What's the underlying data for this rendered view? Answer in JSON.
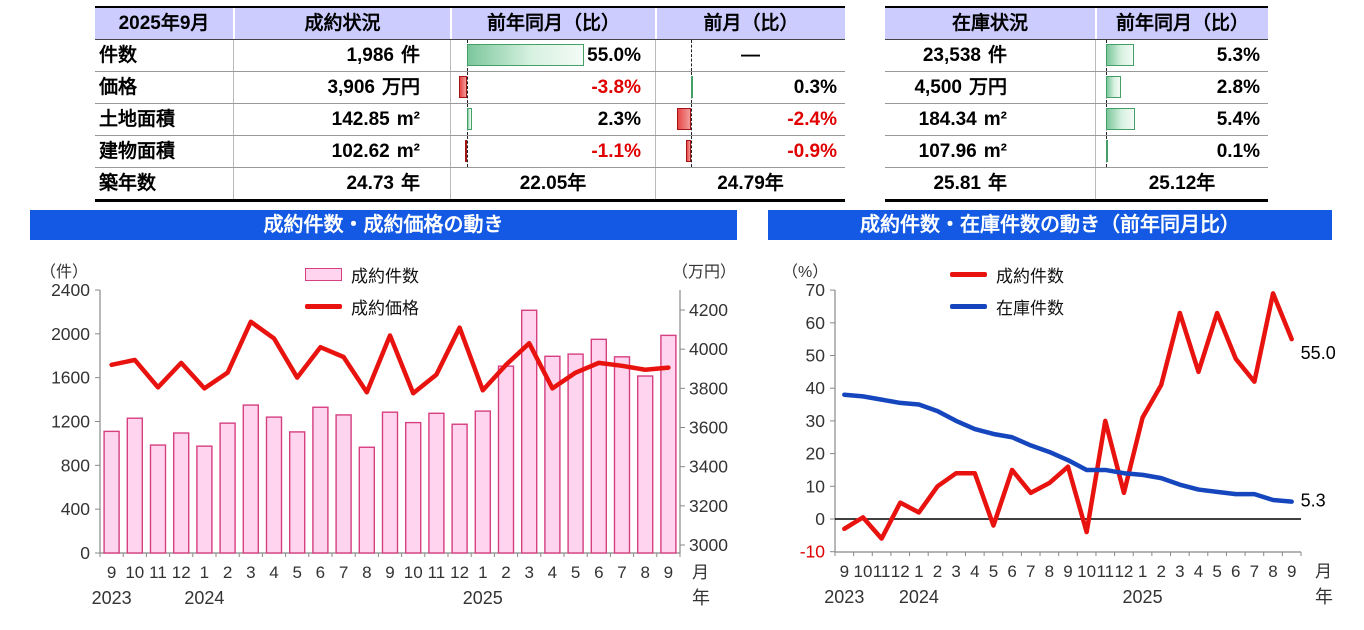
{
  "tables": {
    "left": {
      "headers": [
        "2025年9月",
        "成約状況",
        "前年同月（比）",
        "前月（比）"
      ],
      "rows": [
        {
          "label": "件数",
          "value": "1,986",
          "unit": "件",
          "yoy": {
            "text": "55.0%",
            "value": 55.0
          },
          "mom": {
            "text": "―",
            "value": null
          }
        },
        {
          "label": "価格",
          "value": "3,906",
          "unit": "万円",
          "yoy": {
            "text": "-3.8%",
            "value": -3.8
          },
          "mom": {
            "text": "0.3%",
            "value": 0.3
          }
        },
        {
          "label": "土地面積",
          "value": "142.85",
          "unit": "m²",
          "yoy": {
            "text": "2.3%",
            "value": 2.3
          },
          "mom": {
            "text": "-2.4%",
            "value": -2.4
          }
        },
        {
          "label": "建物面積",
          "value": "102.62",
          "unit": "m²",
          "yoy": {
            "text": "-1.1%",
            "value": -1.1
          },
          "mom": {
            "text": "-0.9%",
            "value": -0.9
          }
        },
        {
          "label": "築年数",
          "value": "24.73",
          "unit": "年",
          "yoy": {
            "text": "22.05年",
            "value": null
          },
          "mom": {
            "text": "24.79年",
            "value": null
          }
        }
      ]
    },
    "right": {
      "headers": [
        "在庫状況",
        "前年同月（比）"
      ],
      "rows": [
        {
          "value": "23,538",
          "unit": "件",
          "yoy": {
            "text": "5.3%",
            "value": 5.3
          }
        },
        {
          "value": "4,500",
          "unit": "万円",
          "yoy": {
            "text": "2.8%",
            "value": 2.8
          }
        },
        {
          "value": "184.34",
          "unit": "m²",
          "yoy": {
            "text": "5.4%",
            "value": 5.4
          }
        },
        {
          "value": "107.96",
          "unit": "m²",
          "yoy": {
            "text": "0.1%",
            "value": 0.1
          }
        },
        {
          "value": "25.81",
          "unit": "年",
          "yoy": {
            "text": "25.12年",
            "value": null
          }
        }
      ]
    }
  },
  "chart_data": [
    {
      "type": "combo",
      "title": "成約件数・成約価格の動き",
      "categories": [
        "9",
        "10",
        "11",
        "12",
        "1",
        "2",
        "3",
        "4",
        "5",
        "6",
        "7",
        "8",
        "9",
        "10",
        "11",
        "12",
        "1",
        "2",
        "3",
        "4",
        "5",
        "6",
        "7",
        "8",
        "9"
      ],
      "year_labels": [
        {
          "text": "2023",
          "index": 0
        },
        {
          "text": "2024",
          "index": 4
        },
        {
          "text": "2025",
          "index": 16
        }
      ],
      "x_unit_month": "月",
      "x_unit_year": "年",
      "left_axis": {
        "title": "（件）",
        "min": 0,
        "max": 2400,
        "step": 400
      },
      "right_axis": {
        "title": "（万円）",
        "min": 3000,
        "max": 4200,
        "step": 200
      },
      "grid": false,
      "legend_position": "top-center",
      "series": [
        {
          "name": "成約件数",
          "type": "bar",
          "axis": "left",
          "values": [
            1110,
            1230,
            985,
            1095,
            975,
            1185,
            1350,
            1240,
            1105,
            1330,
            1260,
            965,
            1285,
            1190,
            1275,
            1175,
            1295,
            1705,
            2215,
            1795,
            1815,
            1950,
            1790,
            1615,
            1986
          ]
        },
        {
          "name": "成約価格",
          "type": "line",
          "axis": "right",
          "values": [
            3920,
            3945,
            3805,
            3930,
            3800,
            3880,
            4140,
            4055,
            3855,
            4010,
            3960,
            3780,
            4070,
            3775,
            3870,
            4110,
            3790,
            3920,
            4030,
            3800,
            3880,
            3930,
            3915,
            3895,
            3906
          ]
        }
      ]
    },
    {
      "type": "line",
      "title": "成約件数・在庫件数の動き（前年同月比）",
      "categories": [
        "9",
        "10",
        "11",
        "12",
        "1",
        "2",
        "3",
        "4",
        "5",
        "6",
        "7",
        "8",
        "9",
        "10",
        "11",
        "12",
        "1",
        "2",
        "3",
        "4",
        "5",
        "6",
        "7",
        "8",
        "9"
      ],
      "year_labels": [
        {
          "text": "2023",
          "index": 0
        },
        {
          "text": "2024",
          "index": 4
        },
        {
          "text": "2025",
          "index": 16
        }
      ],
      "x_unit_month": "月",
      "x_unit_year": "年",
      "left_axis": {
        "title": "（%）",
        "min": -10,
        "max": 70,
        "step": 10
      },
      "grid": false,
      "zero_line": true,
      "legend_position": "top-center",
      "series": [
        {
          "name": "成約件数",
          "type": "line",
          "color_key": "sales_line",
          "values": [
            -3,
            0.5,
            -6,
            5,
            2,
            10,
            14,
            14,
            -2,
            15,
            8,
            11,
            16,
            -4,
            30,
            8,
            31,
            41,
            63,
            45,
            63,
            49,
            42,
            69,
            55
          ]
        },
        {
          "name": "在庫件数",
          "type": "line",
          "color_key": "stock_line",
          "values": [
            38,
            37.5,
            36.5,
            35.5,
            35,
            33,
            30,
            27.5,
            26,
            25,
            22.5,
            20.5,
            18,
            15,
            15,
            14,
            13.5,
            12.5,
            10.5,
            9,
            8.3,
            7.6,
            7.6,
            5.8,
            5.3
          ]
        }
      ],
      "end_labels": [
        {
          "text": "55.0",
          "series": 0
        },
        {
          "text": "5.3",
          "series": 1
        }
      ]
    }
  ],
  "colors": {
    "header_bg": "#CCCCFF",
    "title_bar": "#1359E4",
    "bar_fill": "#FFD4EE",
    "bar_border": "#D63F80",
    "price_line": "#E8120F",
    "sales_line": "#E8120F",
    "stock_line": "#1646BE",
    "negative_text": "#E00000",
    "axis_text": "#333333"
  }
}
